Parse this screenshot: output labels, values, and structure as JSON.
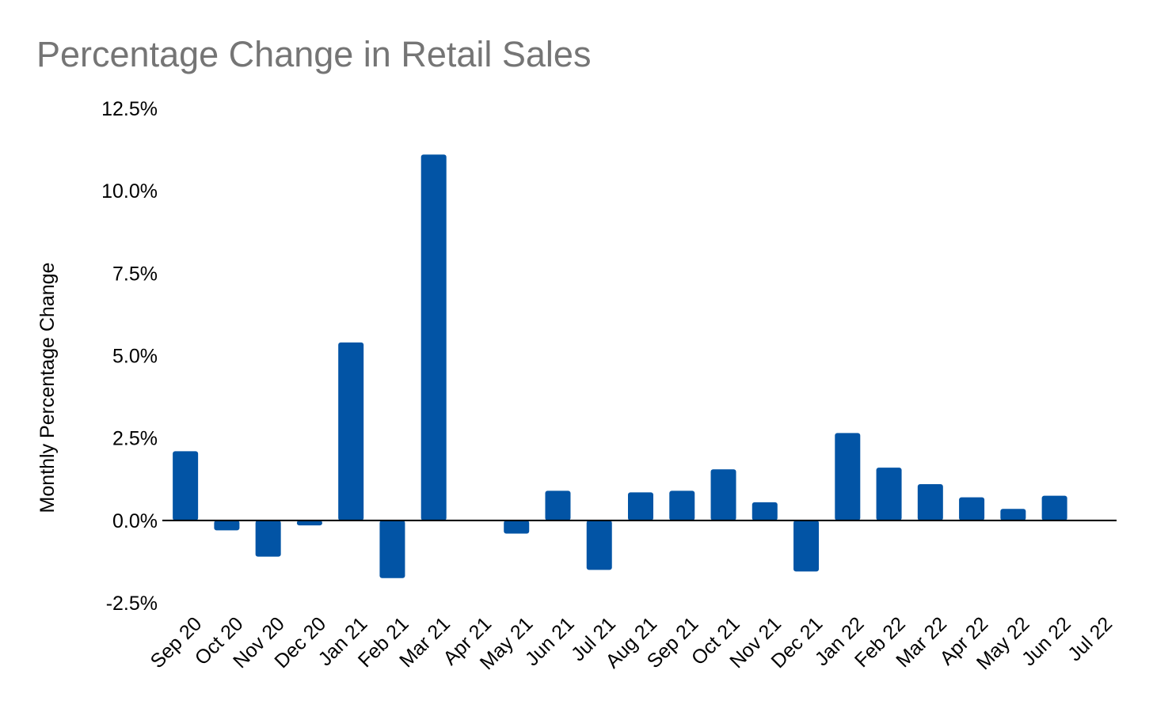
{
  "chart_data": {
    "type": "bar",
    "title": "Percentage Change in Retail Sales",
    "xlabel": "",
    "ylabel": "Monthly Percentage Change",
    "categories": [
      "Sep 20",
      "Oct 20",
      "Nov 20",
      "Dec 20",
      "Jan 21",
      "Feb 21",
      "Mar 21",
      "Apr 21",
      "May 21",
      "Jun 21",
      "Jul 21",
      "Aug 21",
      "Sep 21",
      "Oct 21",
      "Nov 21",
      "Dec 21",
      "Jan 22",
      "Feb 22",
      "Mar 22",
      "Apr 22",
      "May 22",
      "Jun 22",
      "Jul 22"
    ],
    "values": [
      2.1,
      -0.3,
      -1.1,
      -0.15,
      5.4,
      -1.75,
      11.1,
      0.0,
      -0.4,
      0.9,
      -1.5,
      0.85,
      0.9,
      1.55,
      0.55,
      -1.55,
      2.65,
      1.6,
      1.1,
      0.7,
      0.35,
      0.75,
      null
    ],
    "ylim": [
      -2.5,
      12.5
    ],
    "yticks": [
      "-2.5%",
      "0.0%",
      "2.5%",
      "5.0%",
      "7.5%",
      "10.0%",
      "12.5%"
    ],
    "ytick_values": [
      -2.5,
      0,
      2.5,
      5,
      7.5,
      10,
      12.5
    ],
    "grid": false,
    "legend": "none",
    "bar_color": "#0254a5",
    "axis_color": "#000000",
    "title_color": "#757575"
  }
}
